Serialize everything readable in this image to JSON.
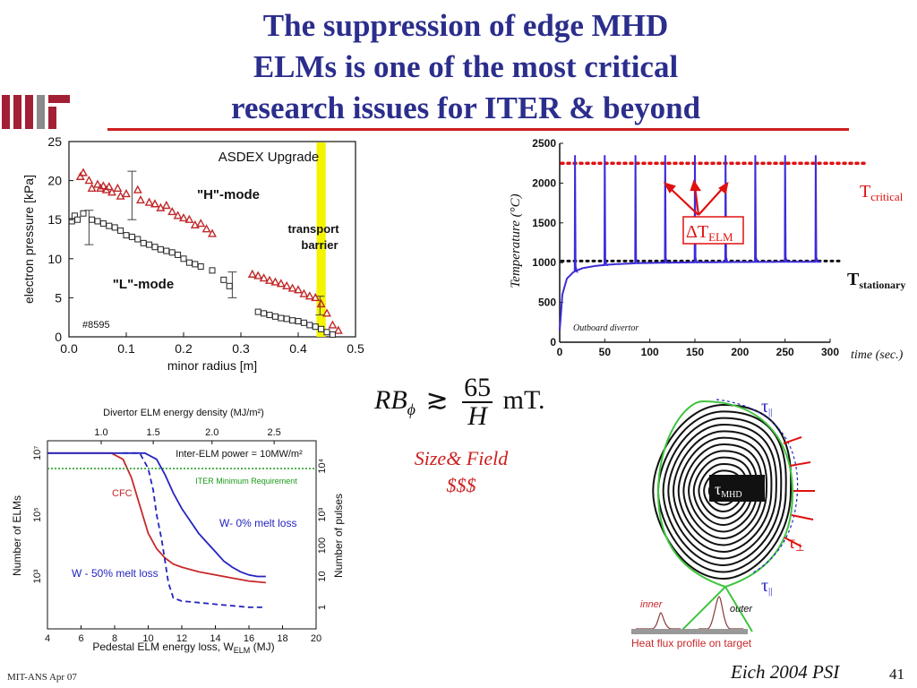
{
  "slide": {
    "title_lines": [
      "The suppression of edge MHD",
      "ELMs is one of the most critical",
      "research issues for ITER & beyond"
    ],
    "footer_left": "MIT-ANS Apr 07",
    "citation": "Eich 2004 PSI",
    "page_number": "41",
    "size_field_lines": [
      "Size& Field",
      "$$$"
    ],
    "equation": {
      "lhs": "RB",
      "sub": "ϕ",
      "relation": "≳",
      "numerator": "65",
      "denominator": "H",
      "unit": "mT."
    },
    "colors": {
      "title": "#2b2e8c",
      "accent_red": "#cc1f1f",
      "mit_red": "#a31f34"
    }
  },
  "chart_data": [
    {
      "type": "scatter",
      "title": "ASDEX Upgrade",
      "xlabel": "minor radius [m]",
      "ylabel": "electron pressure [kPa]",
      "xlim": [
        0,
        0.5
      ],
      "ylim": [
        0,
        25
      ],
      "xticks": [
        "0.0",
        "0.1",
        "0.2",
        "0.3",
        "0.4",
        "0.5"
      ],
      "yticks": [
        "0",
        "5",
        "10",
        "15",
        "20",
        "25"
      ],
      "annotations": [
        "\"H\"-mode",
        "\"L\"-mode",
        "transport",
        "barrier",
        "#8595"
      ],
      "series": [
        {
          "name": "\"H\"-mode",
          "marker": "triangle",
          "color": "#c0282a",
          "x": [
            0.02,
            0.025,
            0.035,
            0.04,
            0.05,
            0.055,
            0.06,
            0.065,
            0.07,
            0.075,
            0.085,
            0.09,
            0.1,
            0.12,
            0.125,
            0.14,
            0.15,
            0.16,
            0.17,
            0.18,
            0.19,
            0.2,
            0.21,
            0.22,
            0.23,
            0.24,
            0.25,
            0.32,
            0.33,
            0.34,
            0.35,
            0.36,
            0.37,
            0.38,
            0.39,
            0.4,
            0.41,
            0.42,
            0.43,
            0.44,
            0.45,
            0.46,
            0.47
          ],
          "y": [
            20.5,
            21,
            20,
            19,
            19.5,
            19,
            19.3,
            18.8,
            19.2,
            18.5,
            19,
            18,
            18.3,
            18.8,
            17.5,
            17.2,
            17,
            16.5,
            16.8,
            16,
            15.5,
            15.2,
            15,
            14.3,
            14.5,
            13.8,
            13.2,
            8,
            7.8,
            7.5,
            7.2,
            7,
            6.8,
            6.5,
            6.2,
            6,
            5.5,
            5.2,
            5,
            4.2,
            3,
            1.5,
            0.8
          ]
        },
        {
          "name": "\"L\"-mode",
          "marker": "square",
          "color": "#222222",
          "x": [
            0.005,
            0.01,
            0.015,
            0.025,
            0.04,
            0.05,
            0.06,
            0.07,
            0.08,
            0.09,
            0.1,
            0.11,
            0.12,
            0.13,
            0.14,
            0.15,
            0.16,
            0.17,
            0.18,
            0.19,
            0.2,
            0.21,
            0.22,
            0.23,
            0.25,
            0.27,
            0.28,
            0.33,
            0.34,
            0.35,
            0.36,
            0.37,
            0.38,
            0.39,
            0.4,
            0.41,
            0.42,
            0.43,
            0.44,
            0.45,
            0.46
          ],
          "y": [
            14.8,
            15.5,
            15,
            15.8,
            15,
            14.8,
            14.5,
            14.2,
            14,
            13.6,
            13,
            12.8,
            12.5,
            12,
            11.8,
            11.5,
            11.2,
            11,
            10.8,
            10.5,
            10,
            9.5,
            9.3,
            9,
            8.5,
            7.3,
            6.5,
            3.2,
            3,
            2.8,
            2.6,
            2.4,
            2.3,
            2.1,
            2,
            1.8,
            1.5,
            1.3,
            1,
            0.6,
            0.3
          ]
        }
      ],
      "error_bars": [
        {
          "x": 0.035,
          "y": 14,
          "low": 11.8,
          "high": 16.2
        },
        {
          "x": 0.11,
          "y": 18,
          "low": 15,
          "high": 21.2
        },
        {
          "x": 0.285,
          "y": 6.5,
          "low": 5,
          "high": 8.3
        },
        {
          "x": 0.438,
          "y": 4,
          "low": 2.8,
          "high": 5.2
        }
      ],
      "band": {
        "label": "transport barrier",
        "x": [
          0.432,
          0.448
        ],
        "color": "#f4f400"
      }
    },
    {
      "type": "line",
      "xlabel": "time (sec.)",
      "ylabel": "Temperature (°C)",
      "xlim": [
        0,
        300
      ],
      "ylim": [
        0,
        2500
      ],
      "xticks": [
        "0",
        "50",
        "100",
        "150",
        "200",
        "250",
        "300"
      ],
      "yticks": [
        "0",
        "500",
        "1000",
        "1500",
        "2000",
        "2500"
      ],
      "annotations": [
        "Outboard divertor",
        "ΔT",
        "ELM"
      ],
      "series": [
        {
          "name": "Outboard divertor",
          "color": "#3c2bd8",
          "baseline": {
            "x": [
              0,
              3,
              8,
              15,
              25,
              40,
              60,
              90,
              120,
              160,
              200,
              250,
              290
            ],
            "y": [
              150,
              600,
              800,
              880,
              930,
              960,
              980,
              995,
              1000,
              1005,
              1008,
              1010,
              1010
            ]
          },
          "spike_times": [
            17,
            50,
            84,
            117,
            150,
            184,
            217,
            250,
            284
          ],
          "spike_peak": 2350
        }
      ],
      "reference_lines": [
        {
          "label": "T",
          "sub": "critical",
          "y": 2250,
          "color": "#e01010"
        },
        {
          "label": "T",
          "sub": "stationary",
          "y": 1020,
          "color": "#111111"
        }
      ]
    },
    {
      "type": "line",
      "xlabel": "Pedestal ELM energy loss, W_ELM (MJ)",
      "ylabel": "Number of ELMs",
      "ylabel_right": "Number of pulses",
      "xlabel_top": "Divertor ELM energy density (MJ/m²)",
      "xlim": [
        4,
        20
      ],
      "xticks": [
        "4",
        "6",
        "8",
        "10",
        "12",
        "14",
        "16",
        "18",
        "20"
      ],
      "top_ticks": [
        "1.0",
        "1.5",
        "2.0",
        "2.5"
      ],
      "left_ticks": [
        "10⁷",
        "10⁵",
        "10³"
      ],
      "right_ticks": [
        "10⁴",
        "10³",
        "100",
        "10",
        "1"
      ],
      "annotations": [
        "Inter-ELM power = 10MW/m²",
        "ITER Minimum Requirement",
        "CFC",
        "W- 0% melt loss",
        "W - 50% melt loss"
      ],
      "series": [
        {
          "name": "CFC",
          "color": "#c8282a",
          "style": "solid",
          "x": [
            4,
            7.8,
            8.5,
            9,
            9.5,
            10,
            10.5,
            11,
            11.5,
            12,
            13,
            14,
            15,
            16,
            17
          ],
          "y": [
            7,
            7,
            6.8,
            6.2,
            5.3,
            4.4,
            3.9,
            3.6,
            3.4,
            3.3,
            3.15,
            3.05,
            2.95,
            2.85,
            2.8
          ]
        },
        {
          "name": "W- 0% melt loss",
          "color": "#2424c0",
          "style": "solid",
          "x": [
            4,
            9.8,
            10.5,
            11,
            11.5,
            12,
            12.5,
            13,
            13.5,
            14,
            14.5,
            15,
            15.5,
            16,
            16.5,
            17
          ],
          "y": [
            7,
            7,
            6.8,
            6.3,
            5.7,
            5.2,
            4.8,
            4.4,
            4.1,
            3.8,
            3.5,
            3.3,
            3.15,
            3.05,
            3,
            3
          ]
        },
        {
          "name": "W - 50% melt loss",
          "color": "#2424c0",
          "style": "dashed",
          "x": [
            8.5,
            9.5,
            10,
            10.3,
            10.5,
            10.8,
            11,
            11.2,
            11.5,
            12,
            13,
            14,
            15,
            16,
            17
          ],
          "y": [
            7,
            7,
            6.5,
            5.8,
            5,
            4.2,
            3.5,
            2.8,
            2.3,
            2.2,
            2.15,
            2.1,
            2.05,
            2,
            2
          ]
        },
        {
          "name": "ITER Minimum Requirement",
          "color": "#1a9a1a",
          "style": "dotted",
          "x": [
            4,
            20
          ],
          "y": [
            6.5,
            6.5
          ]
        }
      ],
      "ylim": [
        1.3,
        7.4
      ]
    }
  ],
  "diagram": {
    "labels": [
      "τ",
      "||",
      "MHD",
      "⊥",
      "inner",
      "outer",
      "Heat flux profile on target"
    ]
  }
}
